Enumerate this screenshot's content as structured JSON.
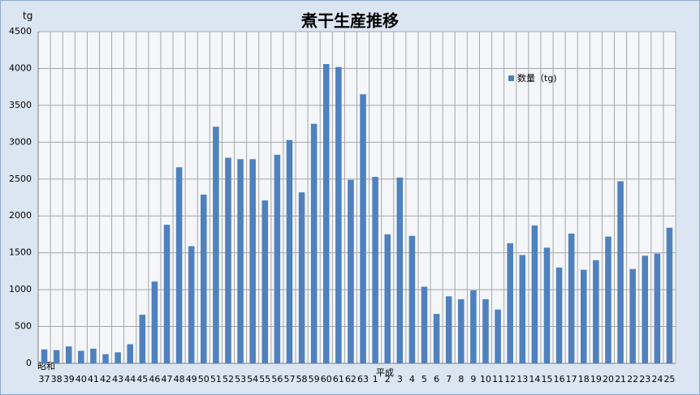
{
  "chart_data": {
    "type": "bar",
    "title": "煮干生産推移",
    "y_label": "tg",
    "annotations": [
      "昭和",
      "平成"
    ],
    "categories": [
      "37",
      "38",
      "39",
      "40",
      "41",
      "42",
      "43",
      "44",
      "45",
      "46",
      "47",
      "48",
      "49",
      "50",
      "51",
      "52",
      "53",
      "54",
      "55",
      "56",
      "57",
      "58",
      "59",
      "60",
      "61",
      "62",
      "63",
      "1",
      "2",
      "3",
      "4",
      "5",
      "6",
      "7",
      "8",
      "9",
      "10",
      "11",
      "12",
      "13",
      "14",
      "15",
      "16",
      "17",
      "18",
      "19",
      "20",
      "21",
      "22",
      "23",
      "24",
      "25"
    ],
    "series": [
      {
        "name": "数量（tg)",
        "color": "#4f81bd",
        "values": [
          190,
          180,
          230,
          170,
          200,
          125,
          150,
          260,
          660,
          1110,
          1880,
          2660,
          1590,
          2290,
          3210,
          2790,
          2770,
          2770,
          2210,
          2830,
          3030,
          2320,
          3250,
          4060,
          4020,
          2490,
          3650,
          2530,
          1750,
          2520,
          1730,
          1040,
          670,
          910,
          870,
          990,
          870,
          730,
          1630,
          1470,
          1870,
          1570,
          1300,
          1760,
          1270,
          1400,
          1720,
          2470,
          1280,
          1460,
          1490,
          1840
        ]
      }
    ],
    "ylim": [
      0,
      4500
    ],
    "yticks": [
      0,
      500,
      1000,
      1500,
      2000,
      2500,
      3000,
      3500,
      4000,
      4500
    ],
    "grid": true,
    "legend": "upper right"
  }
}
